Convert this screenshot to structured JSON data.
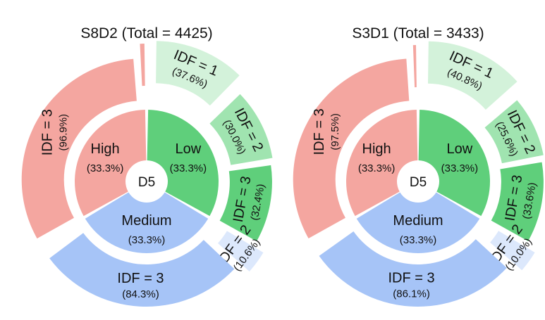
{
  "chart_data": [
    {
      "type": "sunburst",
      "title": "S8D2 (Total = 4425)",
      "center_label": "D5",
      "inner": [
        {
          "label": "High",
          "percent": "(33.3%)",
          "color": "#f4a6a0"
        },
        {
          "label": "Low",
          "percent": "(33.3%)",
          "color": "#5fcf7b"
        },
        {
          "label": "Medium",
          "percent": "(33.3%)",
          "color": "#a6c4f7"
        }
      ],
      "outer": [
        {
          "parent": "High",
          "label": "IDF = 3",
          "percent": "(96.9%)",
          "share": 0.969,
          "color": "#f4a6a0"
        },
        {
          "parent": "High",
          "label": "",
          "percent": "",
          "share": 0.031,
          "color": "#f4a6a0"
        },
        {
          "parent": "Low",
          "label": "IDF = 1",
          "percent": "(37.6%)",
          "share": 0.376,
          "color": "#d3f2da"
        },
        {
          "parent": "Low",
          "label": "IDF = 2",
          "percent": "(30.0%)",
          "share": 0.3,
          "color": "#a0e4b0"
        },
        {
          "parent": "Low",
          "label": "IDF = 3",
          "percent": "(32.4%)",
          "share": 0.324,
          "color": "#5fcf7b"
        },
        {
          "parent": "Medium",
          "label": "IDF = 2",
          "percent": "(10.6%)",
          "share": 0.106,
          "color": "#dce8fc"
        },
        {
          "parent": "Medium",
          "label": "IDF = 3",
          "percent": "(84.3%)",
          "share": 0.843,
          "color": "#a6c4f7"
        }
      ]
    },
    {
      "type": "sunburst",
      "title": "S3D1 (Total = 3433)",
      "center_label": "D5",
      "inner": [
        {
          "label": "High",
          "percent": "(33.3%)",
          "color": "#f4a6a0"
        },
        {
          "label": "Low",
          "percent": "(33.3%)",
          "color": "#5fcf7b"
        },
        {
          "label": "Medium",
          "percent": "(33.3%)",
          "color": "#a6c4f7"
        }
      ],
      "outer": [
        {
          "parent": "High",
          "label": "IDF = 3",
          "percent": "(97.5%)",
          "share": 0.975,
          "color": "#f4a6a0"
        },
        {
          "parent": "High",
          "label": "",
          "percent": "",
          "share": 0.025,
          "color": "#f4a6a0"
        },
        {
          "parent": "Low",
          "label": "IDF = 1",
          "percent": "(40.8%)",
          "share": 0.408,
          "color": "#d3f2da"
        },
        {
          "parent": "Low",
          "label": "IDF = 2",
          "percent": "(25.6%)",
          "share": 0.256,
          "color": "#a0e4b0"
        },
        {
          "parent": "Low",
          "label": "IDF = 3",
          "percent": "(33.6%)",
          "share": 0.336,
          "color": "#5fcf7b"
        },
        {
          "parent": "Medium",
          "label": "IDF = 2",
          "percent": "(10.0%)",
          "share": 0.1,
          "color": "#dce8fc"
        },
        {
          "parent": "Medium",
          "label": "IDF = 3",
          "percent": "(86.1%)",
          "share": 0.861,
          "color": "#a6c4f7"
        }
      ]
    }
  ]
}
